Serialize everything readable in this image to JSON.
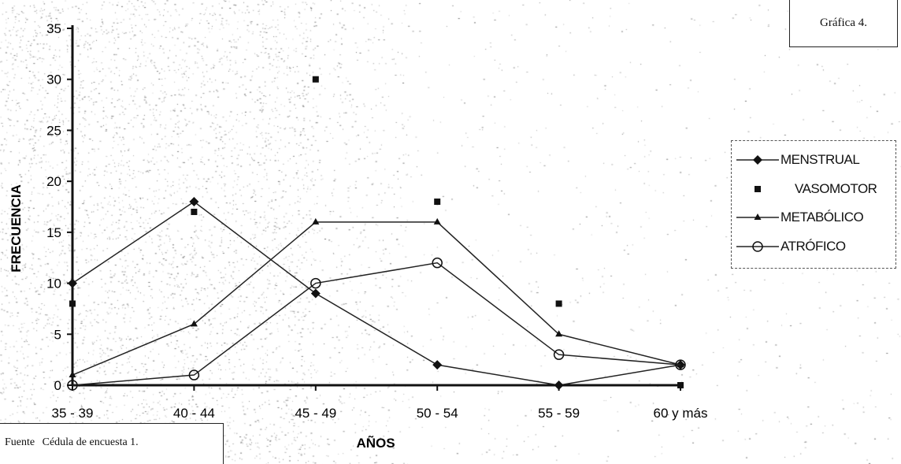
{
  "title_box": {
    "text": "Gráfica 4."
  },
  "source": {
    "label": "Fuente",
    "text": "Cédula de encuesta 1."
  },
  "chart_data": {
    "type": "line",
    "xlabel": "AÑOS",
    "ylabel": "FRECUENCIA",
    "categories": [
      "35 - 39",
      "40 - 44",
      "45 - 49",
      "50 - 54",
      "55 - 59",
      "60  y más"
    ],
    "ylim": [
      0,
      35
    ],
    "yticks": [
      0,
      5,
      10,
      15,
      20,
      25,
      30,
      35
    ],
    "grid": false,
    "legend_position": "right",
    "series": [
      {
        "name": "MENSTRUAL",
        "values": [
          10,
          18,
          9,
          2,
          0,
          2
        ],
        "marker": "diamond",
        "line": true
      },
      {
        "name": "VASOMOTOR",
        "values": [
          8,
          17,
          30,
          18,
          8,
          0
        ],
        "marker": "square",
        "line": false
      },
      {
        "name": "METABÓLICO",
        "values": [
          1,
          6,
          16,
          16,
          5,
          2
        ],
        "marker": "triangle",
        "line": true
      },
      {
        "name": "ATRÓFICO",
        "values": [
          0,
          1,
          10,
          12,
          3,
          2
        ],
        "marker": "circle",
        "line": true
      }
    ]
  }
}
